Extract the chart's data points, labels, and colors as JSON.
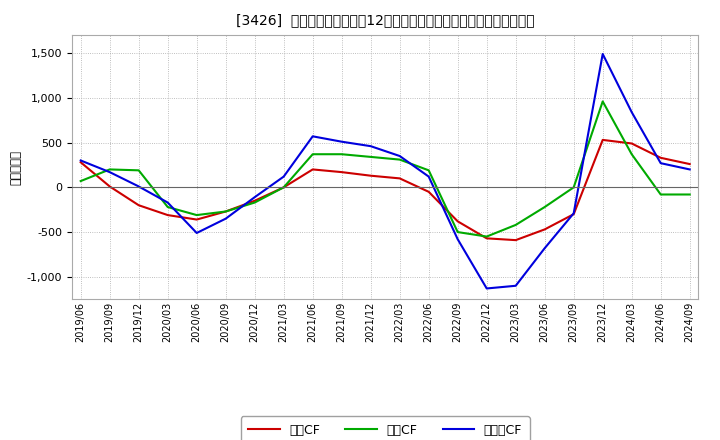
{
  "title": "[3426]  キャッシュフローの12か月移動合計の対前年同期増減額の推移",
  "ylabel": "（百万円）",
  "background_color": "#ffffff",
  "plot_bg_color": "#ffffff",
  "ylim": [
    -1250,
    1700
  ],
  "yticks": [
    -1000,
    -500,
    0,
    500,
    1000,
    1500
  ],
  "series": {
    "営業CF": {
      "color": "#cc0000",
      "data": [
        [
          "2019/06",
          280
        ],
        [
          "2019/09",
          10
        ],
        [
          "2019/12",
          -200
        ],
        [
          "2020/03",
          -310
        ],
        [
          "2020/06",
          -360
        ],
        [
          "2020/09",
          -270
        ],
        [
          "2020/12",
          -150
        ],
        [
          "2021/03",
          0
        ],
        [
          "2021/06",
          200
        ],
        [
          "2021/09",
          170
        ],
        [
          "2021/12",
          130
        ],
        [
          "2022/03",
          100
        ],
        [
          "2022/06",
          -50
        ],
        [
          "2022/09",
          -380
        ],
        [
          "2022/12",
          -570
        ],
        [
          "2023/03",
          -590
        ],
        [
          "2023/06",
          -470
        ],
        [
          "2023/09",
          -300
        ],
        [
          "2023/12",
          530
        ],
        [
          "2024/03",
          490
        ],
        [
          "2024/06",
          330
        ],
        [
          "2024/09",
          260
        ]
      ]
    },
    "投賃CF": {
      "color": "#00aa00",
      "data": [
        [
          "2019/06",
          70
        ],
        [
          "2019/09",
          200
        ],
        [
          "2019/12",
          190
        ],
        [
          "2020/03",
          -220
        ],
        [
          "2020/06",
          -310
        ],
        [
          "2020/09",
          -270
        ],
        [
          "2020/12",
          -170
        ],
        [
          "2021/03",
          0
        ],
        [
          "2021/06",
          370
        ],
        [
          "2021/09",
          370
        ],
        [
          "2021/12",
          340
        ],
        [
          "2022/03",
          310
        ],
        [
          "2022/06",
          190
        ],
        [
          "2022/09",
          -500
        ],
        [
          "2022/12",
          -550
        ],
        [
          "2023/03",
          -420
        ],
        [
          "2023/06",
          -220
        ],
        [
          "2023/09",
          0
        ],
        [
          "2023/12",
          960
        ],
        [
          "2024/03",
          370
        ],
        [
          "2024/06",
          -80
        ],
        [
          "2024/09",
          -80
        ]
      ]
    },
    "フリーCF": {
      "color": "#0000dd",
      "data": [
        [
          "2019/06",
          300
        ],
        [
          "2019/09",
          170
        ],
        [
          "2019/12",
          10
        ],
        [
          "2020/03",
          -170
        ],
        [
          "2020/06",
          -510
        ],
        [
          "2020/09",
          -350
        ],
        [
          "2020/12",
          -110
        ],
        [
          "2021/03",
          120
        ],
        [
          "2021/06",
          570
        ],
        [
          "2021/09",
          510
        ],
        [
          "2021/12",
          460
        ],
        [
          "2022/03",
          350
        ],
        [
          "2022/06",
          120
        ],
        [
          "2022/09",
          -580
        ],
        [
          "2022/12",
          -1130
        ],
        [
          "2023/03",
          -1100
        ],
        [
          "2023/06",
          -680
        ],
        [
          "2023/09",
          -290
        ],
        [
          "2023/12",
          1490
        ],
        [
          "2024/03",
          840
        ],
        [
          "2024/06",
          270
        ],
        [
          "2024/09",
          200
        ]
      ]
    }
  },
  "legend_labels": [
    "営業CF",
    "投賃CF",
    "フリーCF"
  ],
  "legend_colors": [
    "#cc0000",
    "#00aa00",
    "#0000dd"
  ],
  "xtick_labels": [
    "2019/06",
    "2019/09",
    "2019/12",
    "2020/03",
    "2020/06",
    "2020/09",
    "2020/12",
    "2021/03",
    "2021/06",
    "2021/09",
    "2021/12",
    "2022/03",
    "2022/06",
    "2022/09",
    "2022/12",
    "2023/03",
    "2023/06",
    "2023/09",
    "2023/12",
    "2024/03",
    "2024/06",
    "2024/09"
  ]
}
